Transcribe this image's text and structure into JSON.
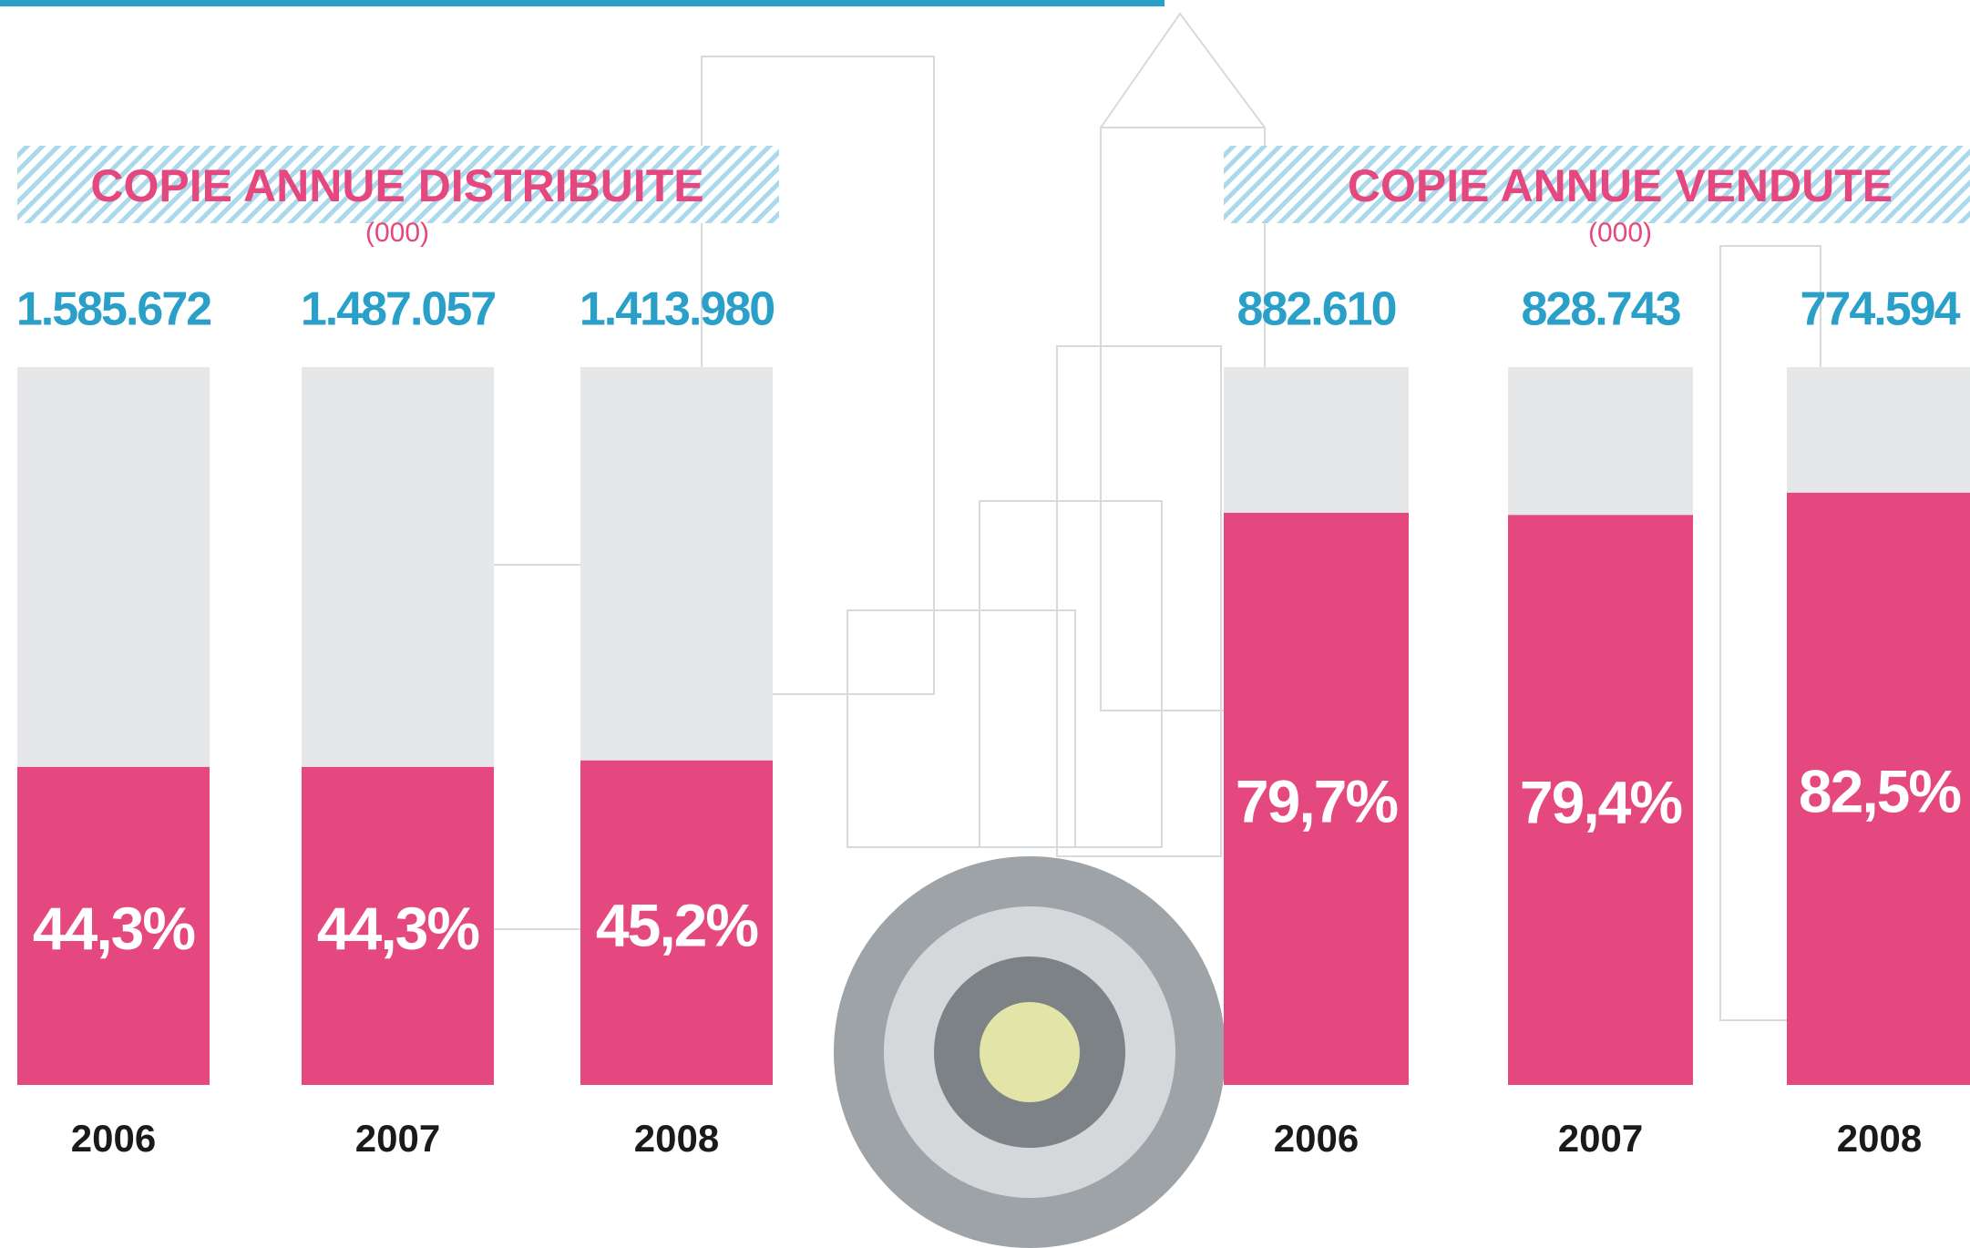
{
  "chart_data": [
    {
      "type": "bar",
      "title": "COPIE ANNUE DISTRIBUITE",
      "subtitle": "(000)",
      "categories": [
        "2006",
        "2007",
        "2008"
      ],
      "values": [
        44.3,
        44.3,
        45.2
      ],
      "value_labels": [
        "44,3%",
        "44,3%",
        "45,2%"
      ],
      "totals": [
        1585672,
        1487057,
        1413980
      ],
      "total_labels": [
        "1.585.672",
        "1.487.057",
        "1.413.980"
      ],
      "color": "#e5487f",
      "background_color": "#e6e7e9",
      "ylim": [
        0,
        100
      ]
    },
    {
      "type": "bar",
      "title": "COPIE ANNUE VENDUTE",
      "subtitle": "(000)",
      "categories": [
        "2006",
        "2007",
        "2008"
      ],
      "values": [
        79.7,
        79.4,
        82.5
      ],
      "value_labels": [
        "79,7%",
        "79,4%",
        "82,5%"
      ],
      "totals": [
        882610,
        828743,
        774594
      ],
      "total_labels": [
        "882.610",
        "828.743",
        "774.594"
      ],
      "color": "#e5487f",
      "background_color": "#e6e7e9",
      "ylim": [
        0,
        100
      ]
    }
  ]
}
